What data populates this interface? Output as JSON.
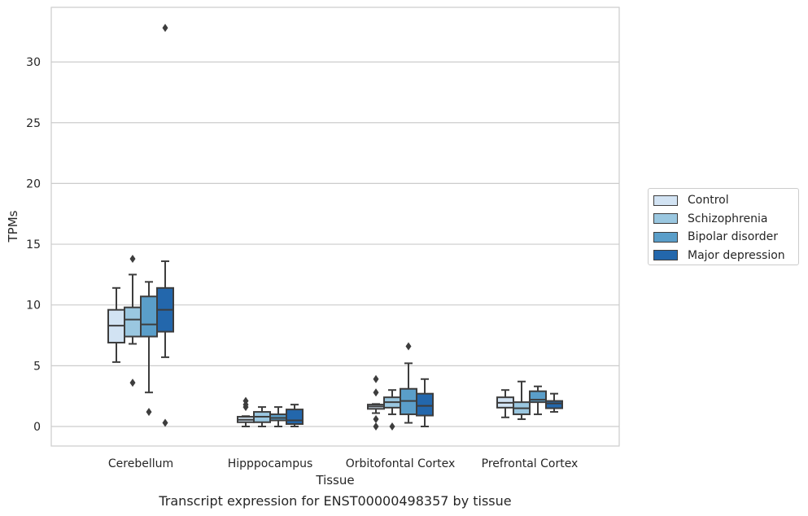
{
  "caption": "Transcript expression for ENST00000498357 by tissue",
  "chart_data": {
    "type": "box",
    "xlabel": "Tissue",
    "ylabel": "TPMs",
    "ylim": [
      -1.6,
      34.1
    ],
    "yticks": [
      0,
      5,
      10,
      15,
      20,
      25,
      30
    ],
    "grid": "horizontal",
    "legend_position": "right",
    "categories": [
      "Cerebellum",
      "Hipppocampus",
      "Orbitofontal Cortex",
      "Prefrontal Cortex"
    ],
    "series": [
      {
        "name": "Control",
        "color": "#d2e3f3",
        "boxes": [
          {
            "q1": 6.9,
            "median": 8.3,
            "q3": 9.6,
            "whisker_low": 5.3,
            "whisker_high": 11.4,
            "outliers": []
          },
          {
            "q1": 0.35,
            "median": 0.55,
            "q3": 0.8,
            "whisker_low": 0.0,
            "whisker_high": 0.85,
            "outliers": [
              1.6,
              1.8,
              2.1
            ]
          },
          {
            "q1": 1.45,
            "median": 1.65,
            "q3": 1.8,
            "whisker_low": 1.1,
            "whisker_high": 1.85,
            "outliers": [
              3.9,
              2.8,
              0.6,
              0.0
            ]
          },
          {
            "q1": 1.55,
            "median": 1.95,
            "q3": 2.4,
            "whisker_low": 0.75,
            "whisker_high": 3.0,
            "outliers": []
          }
        ]
      },
      {
        "name": "Schizophrenia",
        "color": "#9ac7e0",
        "boxes": [
          {
            "q1": 7.4,
            "median": 8.8,
            "q3": 9.8,
            "whisker_low": 6.8,
            "whisker_high": 12.5,
            "outliers": [
              13.8,
              3.6
            ]
          },
          {
            "q1": 0.35,
            "median": 0.8,
            "q3": 1.2,
            "whisker_low": 0.0,
            "whisker_high": 1.6,
            "outliers": []
          },
          {
            "q1": 1.55,
            "median": 2.0,
            "q3": 2.4,
            "whisker_low": 1.0,
            "whisker_high": 3.0,
            "outliers": [
              0.0
            ]
          },
          {
            "q1": 1.0,
            "median": 1.5,
            "q3": 2.0,
            "whisker_low": 0.6,
            "whisker_high": 3.7,
            "outliers": []
          }
        ]
      },
      {
        "name": "Bipolar disorder",
        "color": "#5a9ec9",
        "boxes": [
          {
            "q1": 7.4,
            "median": 8.4,
            "q3": 10.7,
            "whisker_low": 2.8,
            "whisker_high": 11.9,
            "outliers": [
              1.2
            ]
          },
          {
            "q1": 0.5,
            "median": 0.7,
            "q3": 1.0,
            "whisker_low": 0.0,
            "whisker_high": 1.6,
            "outliers": []
          },
          {
            "q1": 1.0,
            "median": 2.1,
            "q3": 3.1,
            "whisker_low": 0.3,
            "whisker_high": 5.2,
            "outliers": [
              6.6
            ]
          },
          {
            "q1": 2.0,
            "median": 2.2,
            "q3": 2.9,
            "whisker_low": 1.0,
            "whisker_high": 3.3,
            "outliers": []
          }
        ]
      },
      {
        "name": "Major depression",
        "color": "#2367ac",
        "boxes": [
          {
            "q1": 7.8,
            "median": 9.6,
            "q3": 11.4,
            "whisker_low": 5.7,
            "whisker_high": 13.6,
            "outliers": [
              32.8,
              0.3
            ]
          },
          {
            "q1": 0.2,
            "median": 0.5,
            "q3": 1.4,
            "whisker_low": 0.0,
            "whisker_high": 1.8,
            "outliers": []
          },
          {
            "q1": 0.9,
            "median": 1.7,
            "q3": 2.7,
            "whisker_low": 0.0,
            "whisker_high": 3.9,
            "outliers": []
          },
          {
            "q1": 1.5,
            "median": 1.9,
            "q3": 2.1,
            "whisker_low": 1.2,
            "whisker_high": 2.7,
            "outliers": []
          }
        ]
      }
    ]
  }
}
